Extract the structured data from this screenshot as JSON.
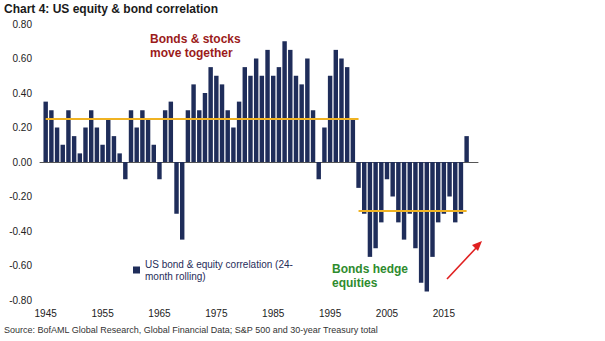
{
  "chart_data": {
    "type": "bar",
    "title": "Chart 4: US equity & bond correlation",
    "source": "Source: BofAML Global Research, Global Financial Data; S&P 500 and 30-year Treasury total",
    "x": [
      1945,
      1946,
      1947,
      1948,
      1949,
      1950,
      1951,
      1952,
      1953,
      1954,
      1955,
      1956,
      1957,
      1958,
      1959,
      1960,
      1961,
      1962,
      1963,
      1964,
      1965,
      1966,
      1967,
      1968,
      1969,
      1970,
      1971,
      1972,
      1973,
      1974,
      1975,
      1976,
      1977,
      1978,
      1979,
      1980,
      1981,
      1982,
      1983,
      1984,
      1985,
      1986,
      1987,
      1988,
      1989,
      1990,
      1991,
      1992,
      1993,
      1994,
      1995,
      1996,
      1997,
      1998,
      1999,
      2000,
      2001,
      2002,
      2003,
      2004,
      2005,
      2006,
      2007,
      2008,
      2009,
      2010,
      2011,
      2012,
      2013,
      2014,
      2015,
      2016,
      2017,
      2018,
      2019
    ],
    "series": [
      {
        "name": "US bond & equity correlation (24-\nmonth rolling)",
        "color": "#1f2d5a",
        "values": [
          0.35,
          0.3,
          0.2,
          0.1,
          0.3,
          0.15,
          0.05,
          0.2,
          0.3,
          0.2,
          0.1,
          0.25,
          0.15,
          0.05,
          -0.1,
          0.3,
          0.2,
          0.3,
          0.25,
          0.1,
          -0.1,
          0.3,
          0.35,
          -0.3,
          -0.45,
          0.3,
          0.45,
          0.3,
          0.4,
          0.55,
          0.5,
          0.45,
          0.3,
          0.2,
          0.35,
          0.55,
          0.5,
          0.6,
          0.5,
          0.65,
          0.5,
          0.55,
          0.7,
          0.65,
          0.5,
          0.45,
          0.6,
          0.3,
          -0.1,
          0.2,
          0.5,
          0.65,
          0.6,
          0.55,
          0.25,
          -0.15,
          -0.3,
          -0.55,
          -0.5,
          -0.35,
          -0.1,
          -0.2,
          -0.35,
          -0.45,
          -0.3,
          -0.5,
          -0.7,
          -0.75,
          -0.55,
          -0.35,
          -0.3,
          -0.2,
          -0.35,
          -0.3,
          0.15
        ]
      }
    ],
    "xlim": [
      1944,
      2021
    ],
    "xticks": [
      1945,
      1955,
      1965,
      1975,
      1985,
      1995,
      2005,
      2015
    ],
    "ylim": [
      -0.8,
      0.8
    ],
    "yticks": [
      {
        "value": -0.8,
        "label": "-0.80"
      },
      {
        "value": -0.6,
        "label": "-0.60"
      },
      {
        "value": -0.4,
        "label": "-0.40"
      },
      {
        "value": -0.2,
        "label": "-0.20"
      },
      {
        "value": 0,
        "label": "0.00"
      },
      {
        "value": 0.2,
        "label": "0.20"
      },
      {
        "value": 0.4,
        "label": "0.40"
      },
      {
        "value": 0.6,
        "label": "0.60"
      },
      {
        "value": 0.8,
        "label": "0.80"
      }
    ],
    "averages": [
      {
        "from": 1945,
        "to": 2000,
        "value": 0.25,
        "color": "#f0b323"
      },
      {
        "from": 2000,
        "to": 2019,
        "value": -0.28,
        "color": "#f0b323"
      }
    ],
    "annotations": [
      {
        "text": "Bonds & stocks\nmove together",
        "color": "#9b1b1b"
      },
      {
        "text": "Bonds hedge\nequities",
        "color": "#2e8b2e"
      }
    ],
    "grid": false,
    "legend": "lower-left"
  }
}
